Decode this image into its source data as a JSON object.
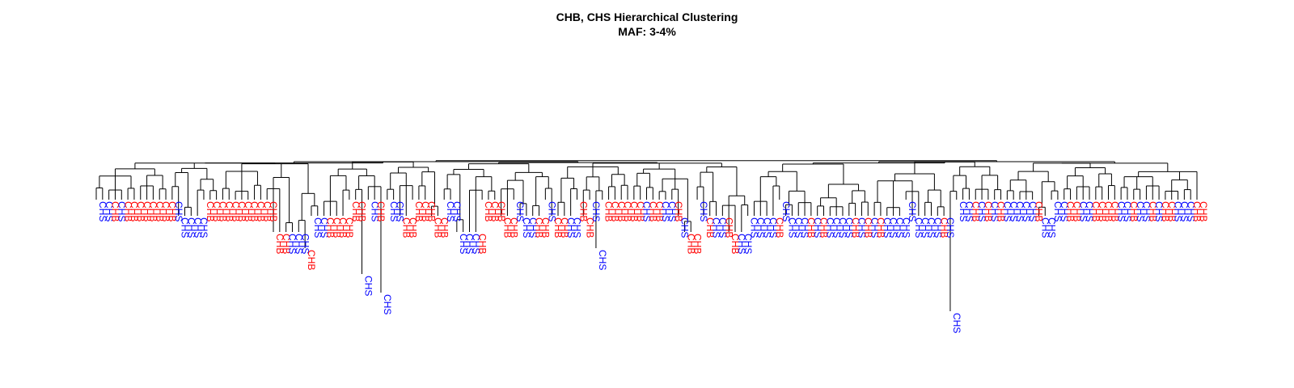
{
  "title": "CHB, CHS Hierarchical Clustering",
  "subtitle": "MAF: 3-4%",
  "colors": {
    "CHB": "#ff0000",
    "CHS": "#0000ff",
    "branch": "#000000"
  },
  "leaves": [
    {
      "label": "CHS",
      "drop": 1
    },
    {
      "label": "CHS",
      "drop": 1
    },
    {
      "label": "CHB",
      "drop": 1
    },
    {
      "label": "CHS",
      "drop": 1
    },
    {
      "label": "CHB",
      "drop": 1
    },
    {
      "label": "CHB",
      "drop": 1
    },
    {
      "label": "CHB",
      "drop": 1
    },
    {
      "label": "CHB",
      "drop": 1
    },
    {
      "label": "CHB",
      "drop": 1
    },
    {
      "label": "CHB",
      "drop": 1
    },
    {
      "label": "CHB",
      "drop": 1
    },
    {
      "label": "CHB",
      "drop": 1
    },
    {
      "label": "CHS",
      "drop": 1
    },
    {
      "label": "CHS",
      "drop": 2
    },
    {
      "label": "CHS",
      "drop": 2
    },
    {
      "label": "CHS",
      "drop": 2
    },
    {
      "label": "CHS",
      "drop": 2
    },
    {
      "label": "CHB",
      "drop": 1
    },
    {
      "label": "CHB",
      "drop": 1
    },
    {
      "label": "CHB",
      "drop": 1
    },
    {
      "label": "CHB",
      "drop": 1
    },
    {
      "label": "CHB",
      "drop": 1
    },
    {
      "label": "CHB",
      "drop": 1
    },
    {
      "label": "CHB",
      "drop": 1
    },
    {
      "label": "CHB",
      "drop": 1
    },
    {
      "label": "CHB",
      "drop": 1
    },
    {
      "label": "CHB",
      "drop": 1
    },
    {
      "label": "CHB",
      "drop": 1
    },
    {
      "label": "CHB",
      "drop": 3
    },
    {
      "label": "CHB",
      "drop": 3
    },
    {
      "label": "CHS",
      "drop": 3
    },
    {
      "label": "CHS",
      "drop": 3
    },
    {
      "label": "CHS",
      "drop": 3
    },
    {
      "label": "CHB",
      "drop": 4
    },
    {
      "label": "CHS",
      "drop": 2
    },
    {
      "label": "CHS",
      "drop": 2
    },
    {
      "label": "CHB",
      "drop": 2
    },
    {
      "label": "CHB",
      "drop": 2
    },
    {
      "label": "CHB",
      "drop": 2
    },
    {
      "label": "CHB",
      "drop": 2
    },
    {
      "label": "CHB",
      "drop": 1
    },
    {
      "label": "CHB",
      "drop": 1
    },
    {
      "label": "CHS",
      "drop": 5
    },
    {
      "label": "CHS",
      "drop": 1
    },
    {
      "label": "CHB",
      "drop": 1
    },
    {
      "label": "CHS",
      "drop": 6
    },
    {
      "label": "CHS",
      "drop": 1
    },
    {
      "label": "CHS",
      "drop": 1
    },
    {
      "label": "CHB",
      "drop": 2
    },
    {
      "label": "CHB",
      "drop": 2
    },
    {
      "label": "CHB",
      "drop": 1
    },
    {
      "label": "CHB",
      "drop": 1
    },
    {
      "label": "CHB",
      "drop": 1
    },
    {
      "label": "CHB",
      "drop": 2
    },
    {
      "label": "CHB",
      "drop": 2
    },
    {
      "label": "CHS",
      "drop": 1
    },
    {
      "label": "CHS",
      "drop": 1
    },
    {
      "label": "CHS",
      "drop": 3
    },
    {
      "label": "CHS",
      "drop": 3
    },
    {
      "label": "CHS",
      "drop": 3
    },
    {
      "label": "CHB",
      "drop": 3
    },
    {
      "label": "CHB",
      "drop": 1
    },
    {
      "label": "CHB",
      "drop": 1
    },
    {
      "label": "CHB",
      "drop": 1
    },
    {
      "label": "CHB",
      "drop": 2
    },
    {
      "label": "CHB",
      "drop": 2
    },
    {
      "label": "CHS",
      "drop": 1
    },
    {
      "label": "CHS",
      "drop": 2
    },
    {
      "label": "CHS",
      "drop": 2
    },
    {
      "label": "CHB",
      "drop": 2
    },
    {
      "label": "CHB",
      "drop": 2
    },
    {
      "label": "CHS",
      "drop": 1
    },
    {
      "label": "CHB",
      "drop": 2
    },
    {
      "label": "CHB",
      "drop": 2
    },
    {
      "label": "CHS",
      "drop": 2
    },
    {
      "label": "CHS",
      "drop": 2
    },
    {
      "label": "CHB",
      "drop": 1
    },
    {
      "label": "CHB",
      "drop": 2
    },
    {
      "label": "CHS",
      "drop": 1
    },
    {
      "label": "CHS",
      "drop": 4
    },
    {
      "label": "CHB",
      "drop": 1
    },
    {
      "label": "CHB",
      "drop": 1
    },
    {
      "label": "CHB",
      "drop": 1
    },
    {
      "label": "CHB",
      "drop": 1
    },
    {
      "label": "CHB",
      "drop": 1
    },
    {
      "label": "CHB",
      "drop": 1
    },
    {
      "label": "CHS",
      "drop": 1
    },
    {
      "label": "CHB",
      "drop": 1
    },
    {
      "label": "CHB",
      "drop": 1
    },
    {
      "label": "CHS",
      "drop": 1
    },
    {
      "label": "CHS",
      "drop": 1
    },
    {
      "label": "CHB",
      "drop": 1
    },
    {
      "label": "CHS",
      "drop": 2
    },
    {
      "label": "CHB",
      "drop": 3
    },
    {
      "label": "CHB",
      "drop": 3
    },
    {
      "label": "CHS",
      "drop": 1
    },
    {
      "label": "CHB",
      "drop": 2
    },
    {
      "label": "CHS",
      "drop": 2
    },
    {
      "label": "CHS",
      "drop": 2
    },
    {
      "label": "CHB",
      "drop": 2
    },
    {
      "label": "CHB",
      "drop": 3
    },
    {
      "label": "CHS",
      "drop": 3
    },
    {
      "label": "CHS",
      "drop": 3
    },
    {
      "label": "CHS",
      "drop": 2
    },
    {
      "label": "CHS",
      "drop": 2
    },
    {
      "label": "CHS",
      "drop": 2
    },
    {
      "label": "CHS",
      "drop": 2
    },
    {
      "label": "CHB",
      "drop": 2
    },
    {
      "label": "CHS",
      "drop": 1
    },
    {
      "label": "CHS",
      "drop": 2
    },
    {
      "label": "CHS",
      "drop": 2
    },
    {
      "label": "CHS",
      "drop": 2
    },
    {
      "label": "CHB",
      "drop": 2
    },
    {
      "label": "CHS",
      "drop": 2
    },
    {
      "label": "CHB",
      "drop": 2
    },
    {
      "label": "CHS",
      "drop": 2
    },
    {
      "label": "CHS",
      "drop": 2
    },
    {
      "label": "CHS",
      "drop": 2
    },
    {
      "label": "CHS",
      "drop": 2
    },
    {
      "label": "CHB",
      "drop": 2
    },
    {
      "label": "CHS",
      "drop": 2
    },
    {
      "label": "CHB",
      "drop": 2
    },
    {
      "label": "CHS",
      "drop": 2
    },
    {
      "label": "CHB",
      "drop": 2
    },
    {
      "label": "CHS",
      "drop": 2
    },
    {
      "label": "CHS",
      "drop": 2
    },
    {
      "label": "CHS",
      "drop": 2
    },
    {
      "label": "CHS",
      "drop": 2
    },
    {
      "label": "CHS",
      "drop": 1
    },
    {
      "label": "CHS",
      "drop": 2
    },
    {
      "label": "CHS",
      "drop": 2
    },
    {
      "label": "CHS",
      "drop": 2
    },
    {
      "label": "CHS",
      "drop": 2
    },
    {
      "label": "CHB",
      "drop": 2
    },
    {
      "label": "CHS",
      "drop": 2
    },
    {
      "label": "CHS",
      "drop": 7
    },
    {
      "label": "CHS",
      "drop": 1
    },
    {
      "label": "CHS",
      "drop": 1
    },
    {
      "label": "CHB",
      "drop": 1
    },
    {
      "label": "CHS",
      "drop": 1
    },
    {
      "label": "CHB",
      "drop": 1
    },
    {
      "label": "CHS",
      "drop": 1
    },
    {
      "label": "CHB",
      "drop": 1
    },
    {
      "label": "CHS",
      "drop": 1
    },
    {
      "label": "CHS",
      "drop": 1
    },
    {
      "label": "CHS",
      "drop": 1
    },
    {
      "label": "CHS",
      "drop": 1
    },
    {
      "label": "CHS",
      "drop": 1
    },
    {
      "label": "CHB",
      "drop": 1
    },
    {
      "label": "CHS",
      "drop": 2
    },
    {
      "label": "CHS",
      "drop": 2
    },
    {
      "label": "CHS",
      "drop": 1
    },
    {
      "label": "CHS",
      "drop": 1
    },
    {
      "label": "CHB",
      "drop": 1
    },
    {
      "label": "CHB",
      "drop": 1
    },
    {
      "label": "CHS",
      "drop": 1
    },
    {
      "label": "CHS",
      "drop": 1
    },
    {
      "label": "CHB",
      "drop": 1
    },
    {
      "label": "CHB",
      "drop": 1
    },
    {
      "label": "CHB",
      "drop": 1
    },
    {
      "label": "CHB",
      "drop": 1
    },
    {
      "label": "CHS",
      "drop": 1
    },
    {
      "label": "CHS",
      "drop": 1
    },
    {
      "label": "CHB",
      "drop": 1
    },
    {
      "label": "CHS",
      "drop": 1
    },
    {
      "label": "CHS",
      "drop": 1
    },
    {
      "label": "CHB",
      "drop": 1
    },
    {
      "label": "CHS",
      "drop": 1
    },
    {
      "label": "CHB",
      "drop": 1
    },
    {
      "label": "CHB",
      "drop": 1
    },
    {
      "label": "CHS",
      "drop": 1
    },
    {
      "label": "CHS",
      "drop": 1
    },
    {
      "label": "CHS",
      "drop": 1
    },
    {
      "label": "CHB",
      "drop": 1
    },
    {
      "label": "CHB",
      "drop": 1
    }
  ]
}
